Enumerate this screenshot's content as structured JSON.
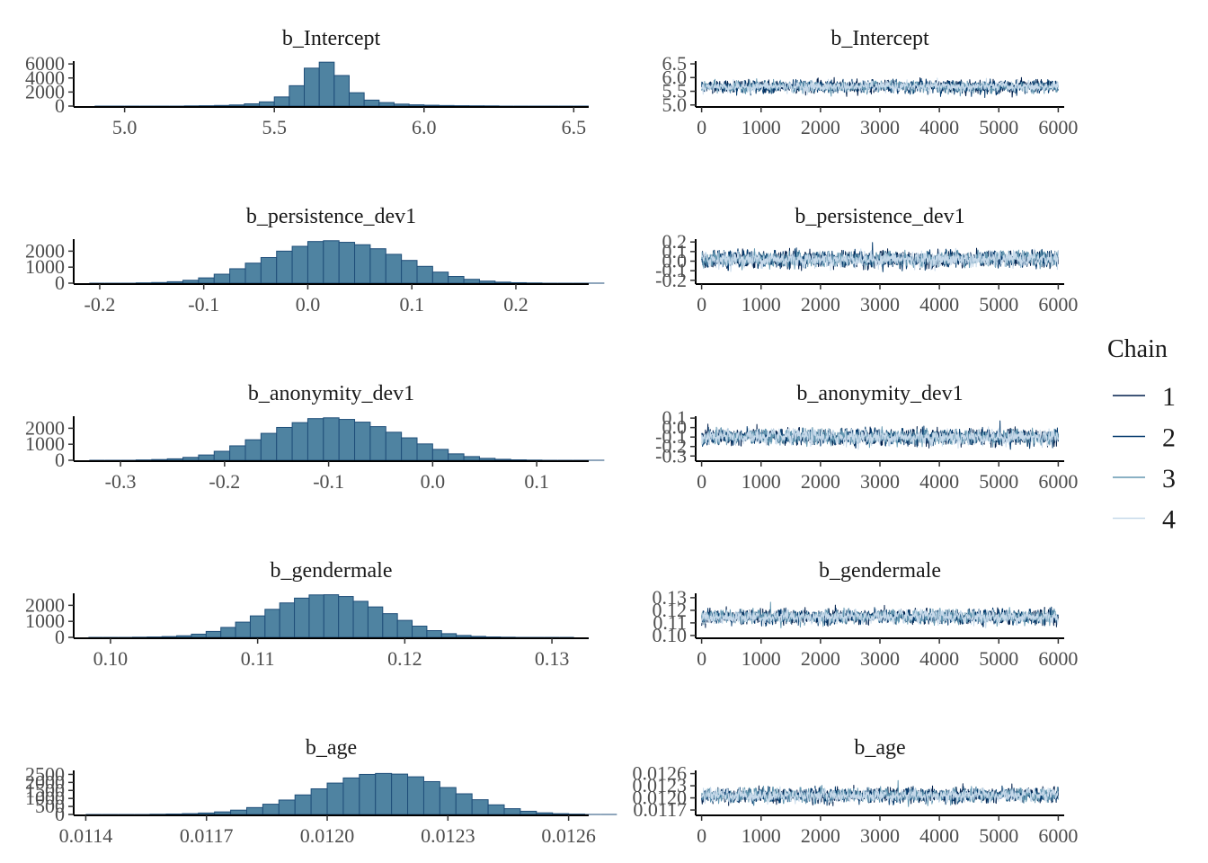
{
  "colors": {
    "hist_fill": "#4f83a1",
    "hist_stroke": "#1f4e79",
    "chain": [
      "#011f4b",
      "#03396c",
      "#6497b1",
      "#c6d9ea"
    ]
  },
  "legend": {
    "title": "Chain",
    "labels": [
      "1",
      "2",
      "3",
      "4"
    ]
  },
  "chart_data": [
    {
      "type": "bar",
      "kind": "histogram",
      "title": "b_Intercept",
      "xlim": [
        4.83,
        6.55
      ],
      "ylim": [
        0,
        6400
      ],
      "xticks": [
        5.0,
        5.5,
        6.0,
        6.5
      ],
      "xtick_labels": [
        "5.0",
        "5.5",
        "6.0",
        "6.5"
      ],
      "yticks": [
        0,
        2000,
        4000,
        6000
      ],
      "ytick_labels": [
        "0",
        "2000",
        "4000",
        "6000"
      ],
      "bin_start": 4.9,
      "bin_width": 0.05,
      "values": [
        2,
        3,
        5,
        8,
        12,
        20,
        30,
        50,
        90,
        160,
        320,
        600,
        1300,
        2900,
        5400,
        6250,
        4350,
        1900,
        850,
        500,
        280,
        180,
        120,
        80,
        55,
        40,
        30,
        22,
        16,
        12,
        9,
        7,
        5
      ]
    },
    {
      "type": "line",
      "kind": "trace",
      "title": "b_Intercept",
      "xlim": [
        -100,
        6100
      ],
      "ylim": [
        4.96,
        6.6
      ],
      "xticks": [
        0,
        1000,
        2000,
        3000,
        4000,
        5000,
        6000
      ],
      "xtick_labels": [
        "0",
        "1000",
        "2000",
        "3000",
        "4000",
        "5000",
        "6000"
      ],
      "yticks": [
        5.0,
        5.5,
        6.0,
        6.5
      ],
      "ytick_labels": [
        "5.0",
        "5.5",
        "6.0",
        "6.5"
      ],
      "iterations": 6000,
      "series": [
        {
          "name": "1",
          "mean": 5.68,
          "sd": 0.15
        },
        {
          "name": "2",
          "mean": 5.67,
          "sd": 0.16
        },
        {
          "name": "3",
          "mean": 5.66,
          "sd": 0.14
        },
        {
          "name": "4",
          "mean": 5.67,
          "sd": 0.13
        }
      ]
    },
    {
      "type": "bar",
      "kind": "histogram",
      "title": "b_persistence_dev1",
      "xlim": [
        -0.225,
        0.27
      ],
      "ylim": [
        0,
        2750
      ],
      "xticks": [
        -0.2,
        -0.1,
        0.0,
        0.1,
        0.2
      ],
      "xtick_labels": [
        "-0.2",
        "-0.1",
        "0.0",
        "0.1",
        "0.2"
      ],
      "yticks": [
        0,
        1000,
        2000
      ],
      "ytick_labels": [
        "0",
        "1000",
        "2000"
      ],
      "bin_start": -0.21,
      "bin_width": 0.015,
      "values": [
        3,
        5,
        10,
        20,
        40,
        90,
        180,
        330,
        560,
        900,
        1250,
        1600,
        2000,
        2300,
        2600,
        2650,
        2550,
        2400,
        2150,
        1800,
        1420,
        1050,
        690,
        420,
        240,
        130,
        65,
        30,
        15,
        8,
        4,
        2,
        1
      ]
    },
    {
      "type": "line",
      "kind": "trace",
      "title": "b_persistence_dev1",
      "xlim": [
        -100,
        6100
      ],
      "ylim": [
        -0.23,
        0.23
      ],
      "xticks": [
        0,
        1000,
        2000,
        3000,
        4000,
        5000,
        6000
      ],
      "xtick_labels": [
        "0",
        "1000",
        "2000",
        "3000",
        "4000",
        "5000",
        "6000"
      ],
      "yticks": [
        -0.2,
        -0.1,
        0.0,
        0.1,
        0.2
      ],
      "ytick_labels": [
        "-0.2",
        "-0.1",
        "0.0",
        "0.1",
        "0.2"
      ],
      "iterations": 6000,
      "series": [
        {
          "name": "1",
          "mean": 0.02,
          "sd": 0.058
        },
        {
          "name": "2",
          "mean": 0.02,
          "sd": 0.057
        },
        {
          "name": "3",
          "mean": 0.02,
          "sd": 0.056
        },
        {
          "name": "4",
          "mean": 0.02,
          "sd": 0.055
        }
      ]
    },
    {
      "type": "bar",
      "kind": "histogram",
      "title": "b_anonymity_dev1",
      "xlim": [
        -0.345,
        0.15
      ],
      "ylim": [
        0,
        2750
      ],
      "xticks": [
        -0.3,
        -0.2,
        -0.1,
        0.0,
        0.1
      ],
      "xtick_labels": [
        "-0.3",
        "-0.2",
        "-0.1",
        "0.0",
        "0.1"
      ],
      "yticks": [
        0,
        1000,
        2000
      ],
      "ytick_labels": [
        "0",
        "1000",
        "2000"
      ],
      "bin_start": -0.33,
      "bin_width": 0.015,
      "values": [
        2,
        5,
        10,
        20,
        45,
        90,
        180,
        330,
        560,
        900,
        1280,
        1680,
        2050,
        2350,
        2600,
        2650,
        2550,
        2380,
        2100,
        1750,
        1400,
        1020,
        680,
        400,
        230,
        120,
        60,
        28,
        12,
        6,
        3,
        1,
        1
      ]
    },
    {
      "type": "line",
      "kind": "trace",
      "title": "b_anonymity_dev1",
      "xlim": [
        -100,
        6100
      ],
      "ylim": [
        -0.345,
        0.12
      ],
      "xticks": [
        0,
        1000,
        2000,
        3000,
        4000,
        5000,
        6000
      ],
      "xtick_labels": [
        "0",
        "1000",
        "2000",
        "3000",
        "4000",
        "5000",
        "6000"
      ],
      "yticks": [
        -0.3,
        -0.2,
        -0.1,
        0.0,
        0.1
      ],
      "ytick_labels": [
        "-0.3",
        "-0.2",
        "-0.1",
        "0.0",
        "0.1"
      ],
      "iterations": 6000,
      "series": [
        {
          "name": "1",
          "mean": -0.1,
          "sd": 0.057
        },
        {
          "name": "2",
          "mean": -0.1,
          "sd": 0.056
        },
        {
          "name": "3",
          "mean": -0.1,
          "sd": 0.056
        },
        {
          "name": "4",
          "mean": -0.1,
          "sd": 0.055
        }
      ]
    },
    {
      "type": "bar",
      "kind": "histogram",
      "title": "b_gendermale",
      "xlim": [
        0.0975,
        0.1325
      ],
      "ylim": [
        0,
        2750
      ],
      "xticks": [
        0.1,
        0.11,
        0.12,
        0.13
      ],
      "xtick_labels": [
        "0.10",
        "0.11",
        "0.12",
        "0.13"
      ],
      "yticks": [
        0,
        1000,
        2000
      ],
      "ytick_labels": [
        "0",
        "1000",
        "2000"
      ],
      "bin_start": 0.0985,
      "bin_width": 0.001,
      "values": [
        1,
        3,
        6,
        12,
        25,
        50,
        100,
        200,
        370,
        620,
        950,
        1340,
        1750,
        2150,
        2450,
        2650,
        2660,
        2550,
        2250,
        1900,
        1480,
        1060,
        700,
        420,
        230,
        120,
        60,
        28,
        12,
        5,
        2,
        1,
        1
      ]
    },
    {
      "type": "line",
      "kind": "trace",
      "title": "b_gendermale",
      "xlim": [
        -100,
        6100
      ],
      "ylim": [
        0.0985,
        0.1335
      ],
      "xticks": [
        0,
        1000,
        2000,
        3000,
        4000,
        5000,
        6000
      ],
      "xtick_labels": [
        "0",
        "1000",
        "2000",
        "3000",
        "4000",
        "5000",
        "6000"
      ],
      "yticks": [
        0.1,
        0.11,
        0.12,
        0.13
      ],
      "ytick_labels": [
        "0.10",
        "0.11",
        "0.12",
        "0.13"
      ],
      "iterations": 6000,
      "series": [
        {
          "name": "1",
          "mean": 0.1148,
          "sd": 0.0039
        },
        {
          "name": "2",
          "mean": 0.1147,
          "sd": 0.0038
        },
        {
          "name": "3",
          "mean": 0.1148,
          "sd": 0.0038
        },
        {
          "name": "4",
          "mean": 0.1147,
          "sd": 0.0037
        }
      ]
    },
    {
      "type": "bar",
      "kind": "histogram",
      "title": "b_age",
      "xlim": [
        0.01137,
        0.01265
      ],
      "ylim": [
        0,
        2750
      ],
      "xticks": [
        0.0114,
        0.0117,
        0.012,
        0.0123,
        0.0126
      ],
      "xtick_labels": [
        "0.0114",
        "0.0117",
        "0.0120",
        "0.0123",
        "0.0126"
      ],
      "yticks": [
        0,
        500,
        1000,
        1500,
        2000,
        2500
      ],
      "ytick_labels": [
        "0",
        "500",
        "1000",
        "1500",
        "2000",
        "2500"
      ],
      "bin_start": 0.0114,
      "bin_width": 4e-05,
      "values": [
        1,
        2,
        4,
        8,
        15,
        28,
        50,
        90,
        160,
        270,
        430,
        640,
        900,
        1220,
        1600,
        1960,
        2280,
        2500,
        2560,
        2520,
        2350,
        2050,
        1680,
        1290,
        920,
        600,
        360,
        200,
        100,
        48,
        22,
        10,
        5
      ]
    },
    {
      "type": "line",
      "kind": "trace",
      "title": "b_age",
      "xlim": [
        -100,
        6100
      ],
      "ylim": [
        0.01159,
        0.01268
      ],
      "xticks": [
        0,
        1000,
        2000,
        3000,
        4000,
        5000,
        6000
      ],
      "xtick_labels": [
        "0",
        "1000",
        "2000",
        "3000",
        "4000",
        "5000",
        "6000"
      ],
      "yticks": [
        0.0117,
        0.012,
        0.0123,
        0.0126
      ],
      "ytick_labels": [
        "0.0117",
        "0.0120",
        "0.0123",
        "0.0126"
      ],
      "iterations": 6000,
      "series": [
        {
          "name": "1",
          "mean": 0.012065,
          "sd": 0.00012
        },
        {
          "name": "2",
          "mean": 0.01206,
          "sd": 0.00012
        },
        {
          "name": "3",
          "mean": 0.012062,
          "sd": 0.00012
        },
        {
          "name": "4",
          "mean": 0.01206,
          "sd": 0.00011
        }
      ]
    }
  ]
}
